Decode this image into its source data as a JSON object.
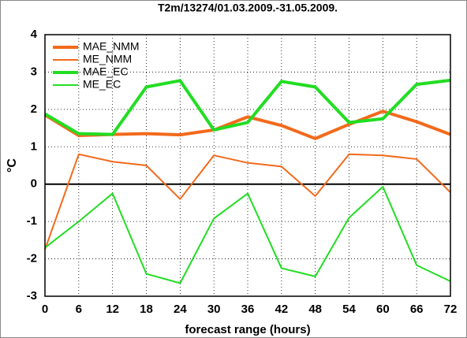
{
  "chart_data": {
    "type": "line",
    "title": "T2m/13274/01.03.2009.-31.05.2009.",
    "x_label": "forecast range (hours)",
    "y_label": "°C",
    "x": [
      0,
      6,
      12,
      18,
      24,
      30,
      36,
      42,
      48,
      54,
      60,
      66,
      72
    ],
    "series": [
      {
        "name": "MAE_NMM",
        "color": "#f26a1b",
        "linewidth": 4,
        "values": [
          1.85,
          1.3,
          1.33,
          1.35,
          1.32,
          1.45,
          1.8,
          1.57,
          1.22,
          1.6,
          1.95,
          1.67,
          1.33
        ]
      },
      {
        "name": "ME_NMM",
        "color": "#f26a1b",
        "linewidth": 2,
        "values": [
          -1.75,
          0.8,
          0.6,
          0.5,
          -0.4,
          0.77,
          0.57,
          0.47,
          -0.32,
          0.8,
          0.77,
          0.67,
          -0.22
        ]
      },
      {
        "name": "MAE_EC",
        "color": "#22dd22",
        "linewidth": 4,
        "values": [
          1.88,
          1.35,
          1.33,
          2.6,
          2.77,
          1.45,
          1.65,
          2.75,
          2.6,
          1.65,
          1.75,
          2.67,
          2.78
        ]
      },
      {
        "name": "ME_EC",
        "color": "#22dd22",
        "linewidth": 2,
        "values": [
          -1.7,
          -1.0,
          -0.25,
          -2.4,
          -2.65,
          -0.92,
          -0.25,
          -2.25,
          -2.47,
          -0.9,
          -0.07,
          -2.17,
          -2.6
        ]
      }
    ],
    "xlim": [
      0,
      72
    ],
    "xticks": [
      0,
      6,
      12,
      18,
      24,
      30,
      36,
      42,
      48,
      54,
      60,
      66,
      72
    ],
    "ylim": [
      -3,
      4
    ],
    "yticks": [
      -3,
      -2,
      -1,
      0,
      1,
      2,
      3,
      4
    ],
    "grid": true,
    "legend": "upper left"
  }
}
